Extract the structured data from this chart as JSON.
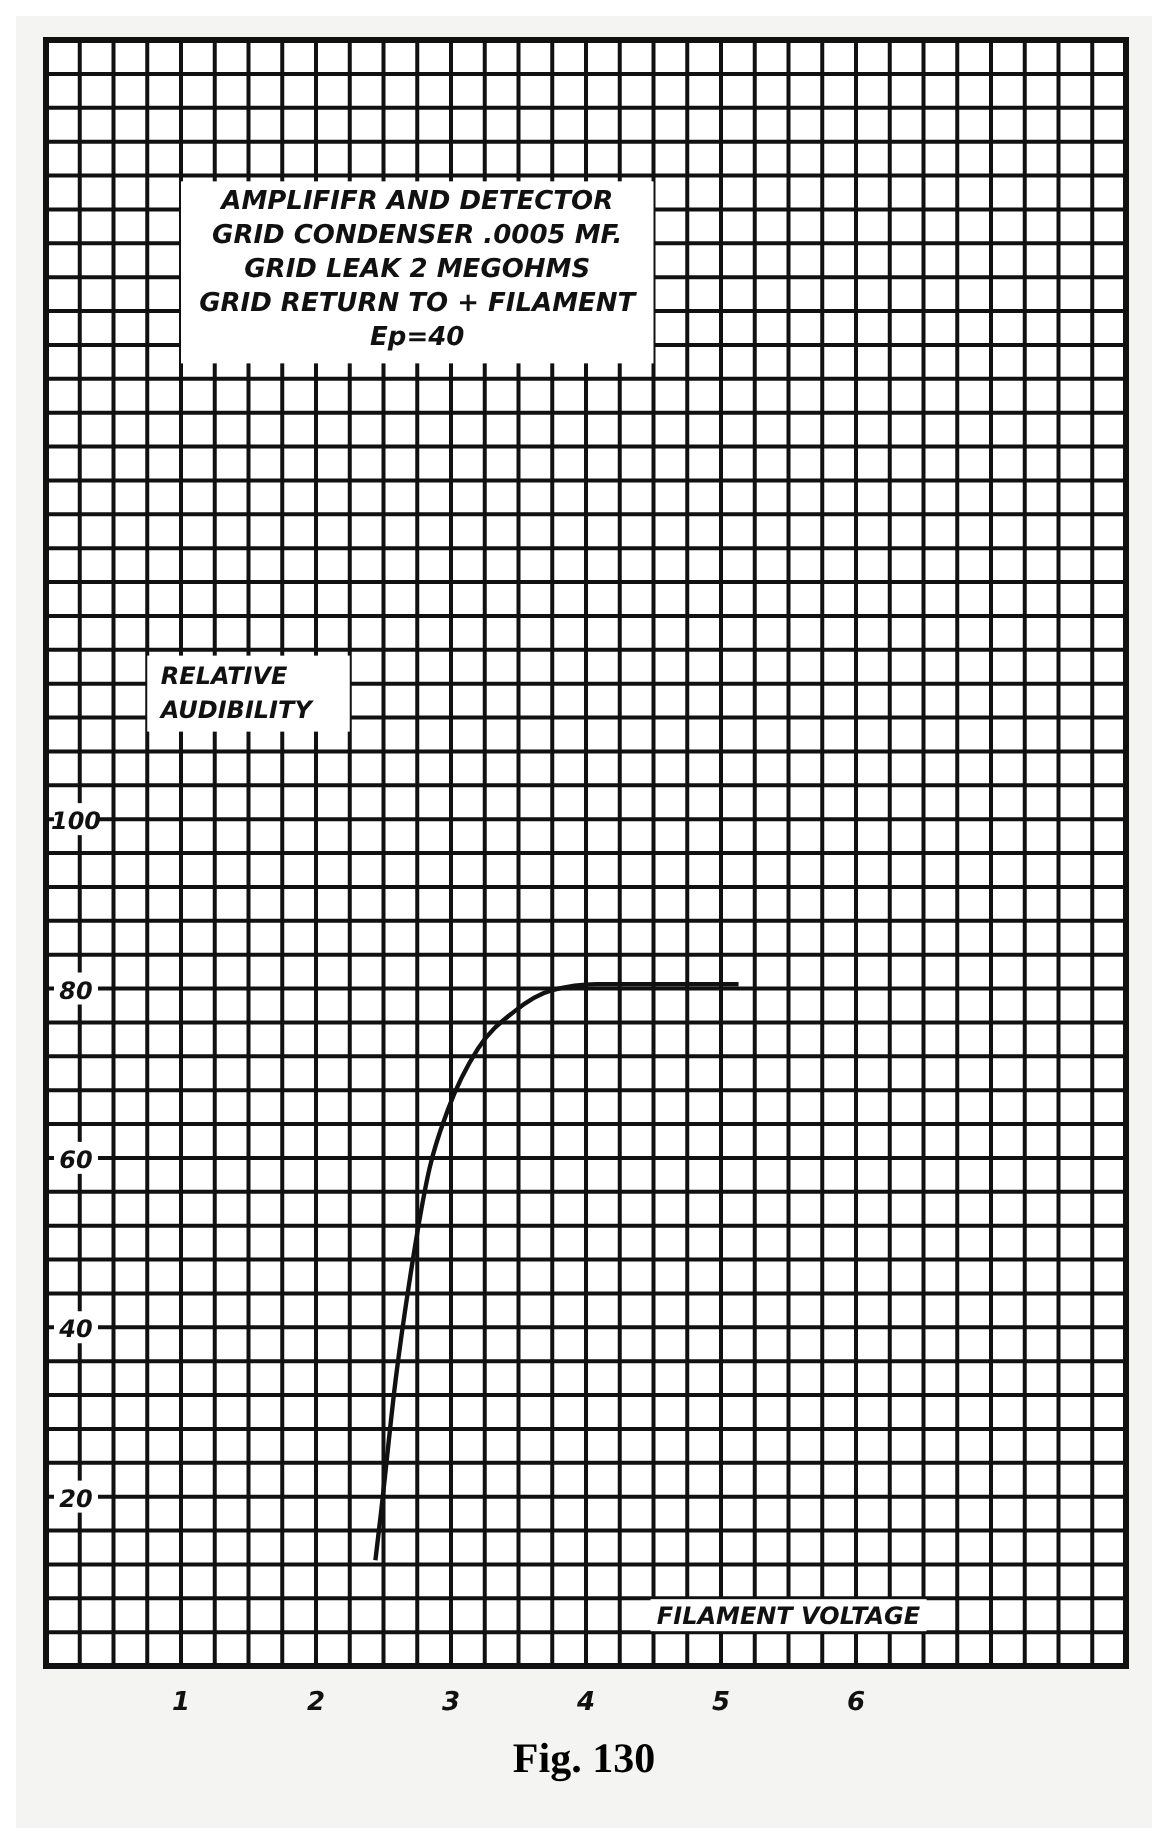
{
  "chart_data": {
    "type": "line",
    "title": "AMPLIFIFR AND DETECTOR",
    "subtitle": "GRID CONDENSER .0005 MF.\nGRID LEAK 2 MEGOHMS\nGRID RETURN TO + FILAMENT\nEp=40",
    "xlabel": "FILAMENT VOLTAGE",
    "ylabel": "RELATIVE\nAUDIBILITY",
    "annotations": [
      "Fig. 130"
    ],
    "x": [
      2.44,
      2.48,
      2.59,
      2.7,
      2.84,
      2.98,
      3.2,
      3.47,
      3.75,
      4.08,
      5.13
    ],
    "series": [
      {
        "color": "#111111",
        "values": [
          12.5,
          17.9,
          33.8,
          46.2,
          58.7,
          65.8,
          72.9,
          77.3,
          79.8,
          80.5,
          80.5
        ]
      }
    ],
    "xlim": [
      0,
      8
    ],
    "xticks": [
      1,
      2,
      3,
      4,
      5,
      6
    ],
    "ylim": [
      0,
      192
    ],
    "yticks": [
      20,
      40,
      60,
      80,
      100
    ],
    "grid": true,
    "marker": "none",
    "line_style": "solid"
  }
}
